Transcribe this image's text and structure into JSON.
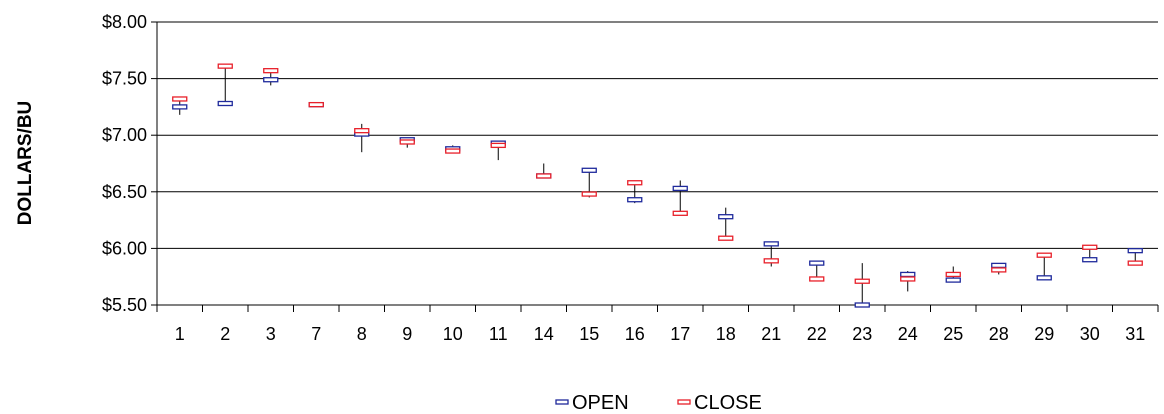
{
  "chart_data": {
    "type": "candlestick",
    "title": "",
    "xlabel": "",
    "ylabel": "DOLLARS/BU",
    "ylim": [
      5.5,
      8.0
    ],
    "y_ticks": [
      5.5,
      6.0,
      6.5,
      7.0,
      7.5,
      8.0
    ],
    "y_tick_labels": [
      "$5.50",
      "$6.00",
      "$6.50",
      "$7.00",
      "$7.50",
      "$8.00"
    ],
    "grid": true,
    "legend_position": "bottom",
    "categories": [
      "1",
      "2",
      "3",
      "7",
      "8",
      "9",
      "10",
      "11",
      "14",
      "15",
      "16",
      "17",
      "18",
      "21",
      "22",
      "23",
      "24",
      "25",
      "28",
      "29",
      "30",
      "31"
    ],
    "series": [
      {
        "name": "OPEN",
        "color": "#1f2a9c",
        "values": [
          7.25,
          7.28,
          7.49,
          7.27,
          7.01,
          6.96,
          6.88,
          6.93,
          6.64,
          6.69,
          6.43,
          6.53,
          6.28,
          6.04,
          5.87,
          5.5,
          5.77,
          5.72,
          5.85,
          5.74,
          5.9,
          5.98
        ]
      },
      {
        "name": "CLOSE",
        "color": "#e8202a",
        "values": [
          7.32,
          7.61,
          7.57,
          7.27,
          7.04,
          6.94,
          6.86,
          6.91,
          6.64,
          6.48,
          6.58,
          6.31,
          6.09,
          5.89,
          5.73,
          5.71,
          5.73,
          5.77,
          5.81,
          5.94,
          6.01,
          5.87
        ]
      }
    ],
    "high": [
      7.32,
      7.61,
      7.57,
      7.28,
      7.1,
      6.98,
      6.91,
      6.95,
      6.75,
      6.69,
      6.58,
      6.6,
      6.36,
      6.04,
      5.87,
      5.87,
      5.8,
      5.84,
      5.86,
      5.94,
      6.01,
      5.99
    ],
    "low": [
      7.18,
      7.27,
      7.44,
      7.26,
      6.85,
      6.89,
      6.84,
      6.78,
      6.63,
      6.45,
      6.4,
      6.3,
      6.08,
      5.84,
      5.72,
      5.5,
      5.62,
      5.7,
      5.77,
      5.73,
      5.89,
      5.86
    ]
  }
}
